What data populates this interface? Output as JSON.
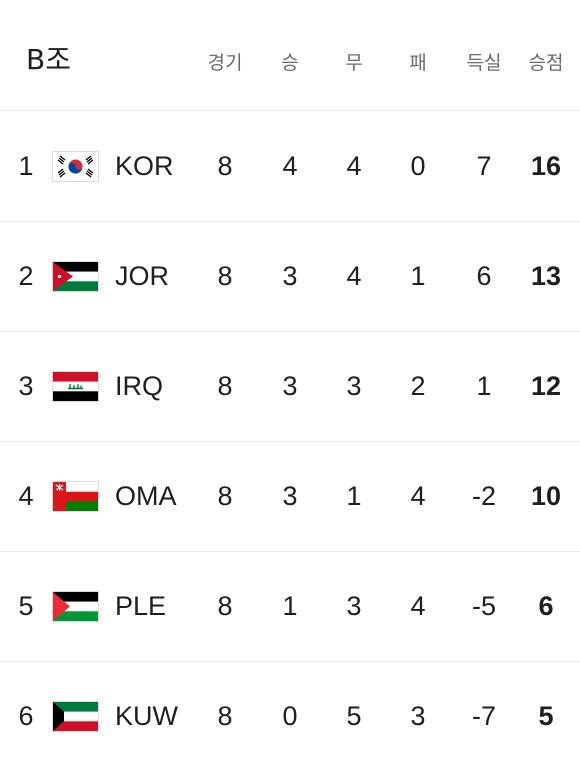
{
  "header": {
    "group": "B조",
    "columns": {
      "played": "경기",
      "won": "승",
      "drawn": "무",
      "lost": "패",
      "goal_diff": "득실",
      "points": "승점"
    }
  },
  "rows": [
    {
      "rank": "1",
      "team": "KOR",
      "flag": "kor-flag-icon",
      "played": "8",
      "won": "4",
      "drawn": "4",
      "lost": "0",
      "goal_diff": "7",
      "points": "16"
    },
    {
      "rank": "2",
      "team": "JOR",
      "flag": "jor-flag-icon",
      "played": "8",
      "won": "3",
      "drawn": "4",
      "lost": "1",
      "goal_diff": "6",
      "points": "13"
    },
    {
      "rank": "3",
      "team": "IRQ",
      "flag": "irq-flag-icon",
      "played": "8",
      "won": "3",
      "drawn": "3",
      "lost": "2",
      "goal_diff": "1",
      "points": "12"
    },
    {
      "rank": "4",
      "team": "OMA",
      "flag": "oma-flag-icon",
      "played": "8",
      "won": "3",
      "drawn": "1",
      "lost": "4",
      "goal_diff": "-2",
      "points": "10"
    },
    {
      "rank": "5",
      "team": "PLE",
      "flag": "ple-flag-icon",
      "played": "8",
      "won": "1",
      "drawn": "3",
      "lost": "4",
      "goal_diff": "-5",
      "points": "6"
    },
    {
      "rank": "6",
      "team": "KUW",
      "flag": "kuw-flag-icon",
      "played": "8",
      "won": "0",
      "drawn": "5",
      "lost": "3",
      "goal_diff": "-7",
      "points": "5"
    }
  ]
}
